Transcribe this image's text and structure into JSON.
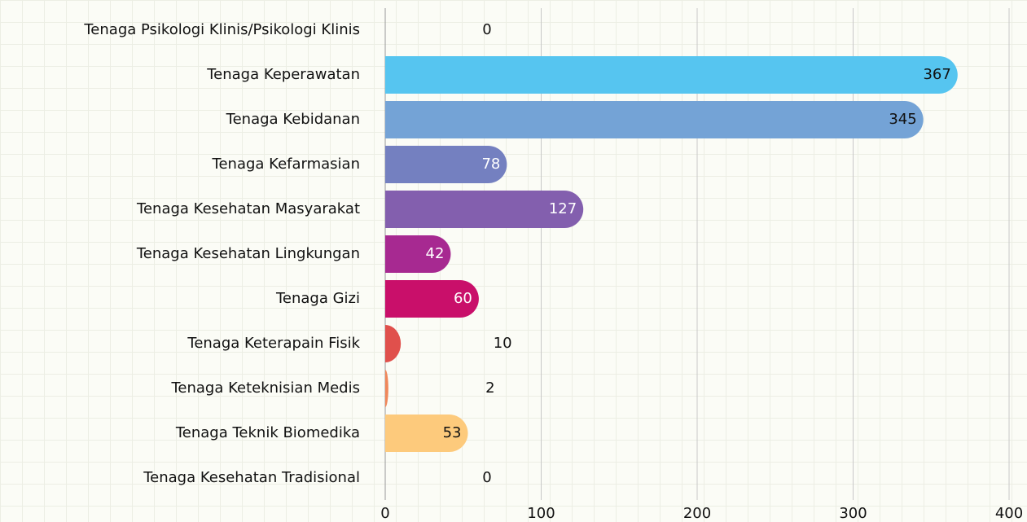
{
  "chart_data": {
    "type": "barh",
    "categories": [
      "Tenaga Psikologi Klinis/Psikologi Klinis",
      "Tenaga Keperawatan",
      "Tenaga Kebidanan",
      "Tenaga Kefarmasian",
      "Tenaga Kesehatan Masyarakat",
      "Tenaga Kesehatan Lingkungan",
      "Tenaga Gizi",
      "Tenaga Keterapain Fisik",
      "Tenaga Keteknisian Medis",
      "Tenaga Teknik Biomedika",
      "Tenaga Kesehatan Tradisional"
    ],
    "values": [
      0,
      367,
      345,
      78,
      127,
      42,
      60,
      10,
      2,
      53,
      0
    ],
    "colors": [
      "#9aa9c0",
      "#56c5f0",
      "#74a3d6",
      "#7480c0",
      "#835fae",
      "#a72991",
      "#c90f6a",
      "#e0504c",
      "#f0875a",
      "#fdca7c",
      "#9aa9c0"
    ],
    "xlim": [
      0,
      400
    ],
    "xticks": [
      0,
      100,
      200,
      300,
      400
    ],
    "grid": true
  }
}
